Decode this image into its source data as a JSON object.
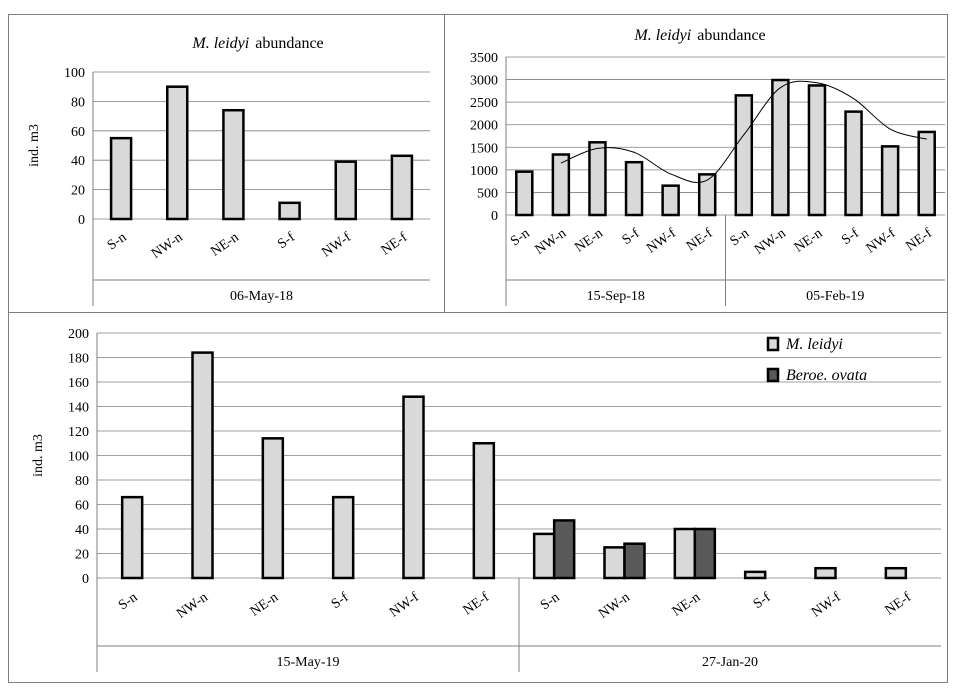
{
  "colors": {
    "mleidyi_fill": "#d9d9d9",
    "beroe_fill": "#595959",
    "grid": "#7f7f7f",
    "frame": "#7f7f7f"
  },
  "chart_data": [
    {
      "type": "bar",
      "title_italic": "M. leidyi",
      "title_rest": "abundance",
      "ylabel": "ind. m3",
      "ylim": [
        0,
        100
      ],
      "yticks": [
        0,
        20,
        40,
        60,
        80,
        100
      ],
      "grid": true,
      "groups": [
        {
          "label": "06-May-18",
          "categories": [
            "S-n",
            "NW-n",
            "NE-n",
            "S-f",
            "NW-f",
            "NE-f"
          ],
          "values": [
            55,
            90,
            74,
            11,
            39,
            43
          ]
        }
      ]
    },
    {
      "type": "bar",
      "title_italic": "M. leidyi",
      "title_rest": "abundance",
      "ylim": [
        0,
        3500
      ],
      "yticks": [
        0,
        500,
        1000,
        1500,
        2000,
        2500,
        3000,
        3500
      ],
      "grid": true,
      "trendline": true,
      "groups": [
        {
          "label": "15-Sep-18",
          "categories": [
            "S-n",
            "NW-n",
            "NE-n",
            "S-f",
            "NW-f",
            "NE-f"
          ],
          "values": [
            960,
            1340,
            1610,
            1170,
            650,
            900
          ]
        },
        {
          "label": "05-Feb-19",
          "categories": [
            "S-n",
            "NW-n",
            "NE-n",
            "S-f",
            "NW-f",
            "NE-f"
          ],
          "values": [
            2650,
            2990,
            2870,
            2290,
            1520,
            1840
          ]
        }
      ]
    },
    {
      "type": "bar",
      "ylabel": "ind. m3",
      "ylim": [
        0,
        200
      ],
      "yticks": [
        0,
        20,
        40,
        60,
        80,
        100,
        120,
        140,
        160,
        180,
        200
      ],
      "grid": true,
      "legend_position": "top-right",
      "series": [
        {
          "name": "M. leidyi",
          "values": [
            66,
            184,
            114,
            66,
            148,
            110,
            36,
            25,
            40,
            5,
            8,
            8
          ]
        },
        {
          "name": "Beroe. ovata",
          "values": [
            null,
            null,
            null,
            null,
            null,
            null,
            47,
            28,
            40,
            0,
            0,
            0
          ]
        }
      ],
      "groups": [
        {
          "label": "15-May-19",
          "categories": [
            "S-n",
            "NW-n",
            "NE-n",
            "S-f",
            "NW-f",
            "NE-f"
          ]
        },
        {
          "label": "27-Jan-20",
          "categories": [
            "S-n",
            "NW-n",
            "NE-n",
            "S-f",
            "NW-f",
            "NE-f"
          ]
        }
      ]
    }
  ]
}
